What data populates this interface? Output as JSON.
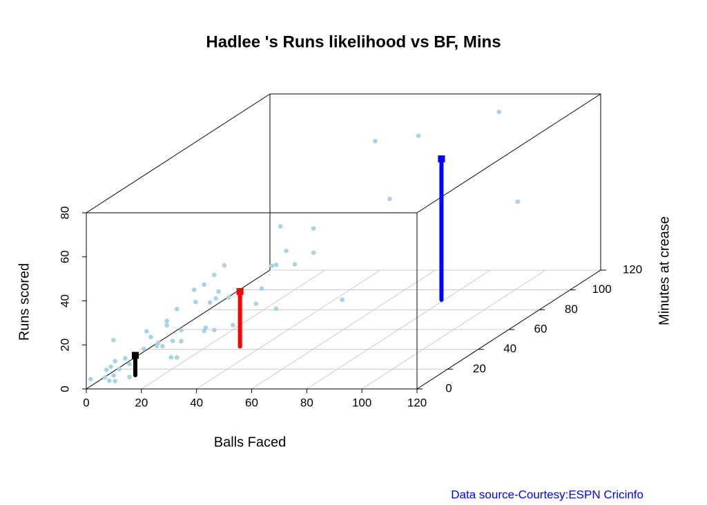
{
  "chart_data": {
    "type": "scatter3d",
    "title": "Hadlee 's Runs likelihood vs BF, Mins",
    "xlabel": "Balls Faced",
    "ylabel": "Runs scored",
    "zlabel": "Minutes at crease",
    "source": "Data source-Courtesy:ESPN Cricinfo",
    "xlim": [
      0,
      120
    ],
    "xticks": [
      0,
      20,
      40,
      60,
      80,
      100,
      120
    ],
    "ylim": [
      0,
      80
    ],
    "yticks": [
      0,
      20,
      40,
      60,
      80
    ],
    "zlim": [
      0,
      120
    ],
    "zticks": [
      0,
      20,
      40,
      60,
      80,
      100,
      120
    ],
    "grid": true,
    "point_color": "#a6d4e6",
    "points": {
      "x": [
        1,
        4,
        5,
        6,
        6,
        4,
        5,
        6,
        6,
        7,
        8,
        9,
        9,
        12,
        13,
        14,
        15,
        15,
        16,
        17,
        17,
        18,
        18,
        19,
        20,
        20,
        19,
        23,
        23,
        25,
        25,
        27,
        26,
        27,
        27,
        30,
        31,
        36,
        37,
        40,
        41,
        48,
        42,
        48,
        44,
        39,
        40,
        54,
        29,
        25,
        28,
        87,
        70,
        61,
        64,
        91
      ],
      "z": [
        1,
        5,
        6,
        7,
        8,
        6,
        7,
        8,
        7,
        9,
        11,
        12,
        12,
        16,
        16,
        17,
        19,
        20,
        21,
        22,
        22,
        23,
        24,
        25,
        26,
        26,
        25,
        29,
        30,
        32,
        33,
        35,
        34,
        36,
        35,
        39,
        40,
        46,
        48,
        52,
        53,
        62,
        55,
        62,
        57,
        51,
        52,
        70,
        38,
        32,
        36,
        113,
        91,
        79,
        83,
        118
      ],
      "y": [
        4,
        3,
        1,
        3,
        0,
        6,
        7,
        9,
        19,
        5,
        9,
        6,
        0,
        11,
        19,
        16,
        11,
        12,
        10,
        19,
        21,
        4,
        11,
        3,
        15,
        10,
        25,
        32,
        26,
        12,
        13,
        11,
        24,
        25,
        36,
        24,
        11,
        18,
        24,
        13,
        50,
        45,
        38,
        34,
        31,
        33,
        33,
        9,
        39,
        33,
        28,
        75,
        74,
        77,
        49,
        32
      ]
    },
    "ranges": [
      {
        "color": "#000000",
        "x": 15,
        "z": 5,
        "low": 4,
        "high": 13
      },
      {
        "color": "#ff0000",
        "x": 53,
        "z": 5,
        "low": 17,
        "high": 42
      },
      {
        "color": "#0000ff",
        "x": 90,
        "z": 70,
        "low": 9,
        "high": 73
      }
    ]
  }
}
